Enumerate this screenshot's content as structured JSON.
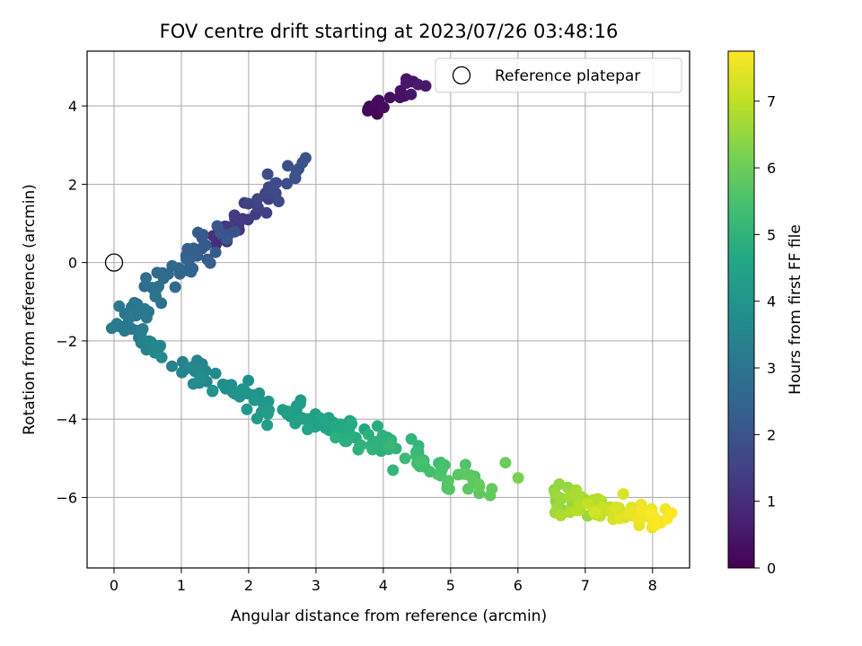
{
  "chart_data": {
    "type": "scatter",
    "title": "FOV centre drift starting at 2023/07/26 03:48:16",
    "xlabel": "Angular distance from reference (arcmin)",
    "ylabel": "Rotation from reference (arcmin)",
    "xlim": [
      -0.4,
      8.55
    ],
    "ylim": [
      -7.8,
      5.4
    ],
    "xticks": [
      0,
      1,
      2,
      3,
      4,
      5,
      6,
      7,
      8
    ],
    "yticks": [
      -6,
      -4,
      -2,
      0,
      2,
      4
    ],
    "grid": true,
    "colormap": "viridis",
    "colorbar": {
      "label": "Hours from first FF file",
      "range": [
        0,
        7.75
      ],
      "ticks": [
        0,
        1,
        2,
        3,
        4,
        5,
        6,
        7
      ]
    },
    "legend": {
      "position": "top-right",
      "entries": [
        "Reference platepar"
      ]
    },
    "reference_point": {
      "label": "Reference platepar",
      "x": 0,
      "y": 0
    },
    "clusters": [
      {
        "hours": [
          0.05,
          0.55
        ],
        "cx": 4.15,
        "cy": 4.2,
        "sx": 0.22,
        "sy": 0.3,
        "n": 22,
        "trend": [
          [
            3.8,
            3.75
          ],
          [
            4.55,
            4.8
          ]
        ]
      },
      {
        "hours": [
          1.0,
          2.0
        ],
        "cx": 2.3,
        "cy": 1.2,
        "sx": 0.25,
        "sy": 0.3,
        "n": 40,
        "trend": [
          [
            1.6,
            0.5
          ],
          [
            2.75,
            2.5
          ]
        ]
      },
      {
        "hours": [
          2.0,
          3.2
        ],
        "cx": 0.9,
        "cy": -0.2,
        "sx": 0.3,
        "sy": 0.35,
        "n": 55,
        "trend": [
          [
            1.6,
            0.8
          ],
          [
            0.15,
            -1.5
          ]
        ]
      },
      {
        "hours": [
          3.0,
          3.6
        ],
        "cx": 0.4,
        "cy": -1.9,
        "sx": 0.15,
        "sy": 0.25,
        "n": 25,
        "trend": [
          [
            0.1,
            -1.6
          ],
          [
            0.7,
            -2.3
          ]
        ]
      },
      {
        "hours": [
          3.4,
          4.3
        ],
        "cx": 1.7,
        "cy": -3.2,
        "sx": 0.35,
        "sy": 0.3,
        "n": 50,
        "trend": [
          [
            1.0,
            -2.5
          ],
          [
            2.5,
            -3.9
          ]
        ]
      },
      {
        "hours": [
          4.2,
          5.0
        ],
        "cx": 3.2,
        "cy": -4.2,
        "sx": 0.35,
        "sy": 0.3,
        "n": 60,
        "trend": [
          [
            2.6,
            -3.8
          ],
          [
            3.9,
            -4.6
          ]
        ]
      },
      {
        "hours": [
          4.9,
          5.9
        ],
        "cx": 4.7,
        "cy": -5.2,
        "sx": 0.35,
        "sy": 0.3,
        "n": 50,
        "trend": [
          [
            4.0,
            -4.6
          ],
          [
            5.5,
            -5.8
          ]
        ]
      },
      {
        "hours": [
          6.0,
          6.2
        ],
        "cx": 5.9,
        "cy": -5.3,
        "sx": 0.05,
        "sy": 0.1,
        "n": 2,
        "trend": [
          [
            5.85,
            -5.1
          ],
          [
            6.0,
            -5.5
          ]
        ]
      },
      {
        "hours": [
          6.4,
          7.75
        ],
        "cx": 7.15,
        "cy": -6.3,
        "sx": 0.35,
        "sy": 0.35,
        "n": 90,
        "trend": [
          [
            6.5,
            -6.0
          ],
          [
            8.1,
            -6.6
          ]
        ]
      }
    ]
  }
}
